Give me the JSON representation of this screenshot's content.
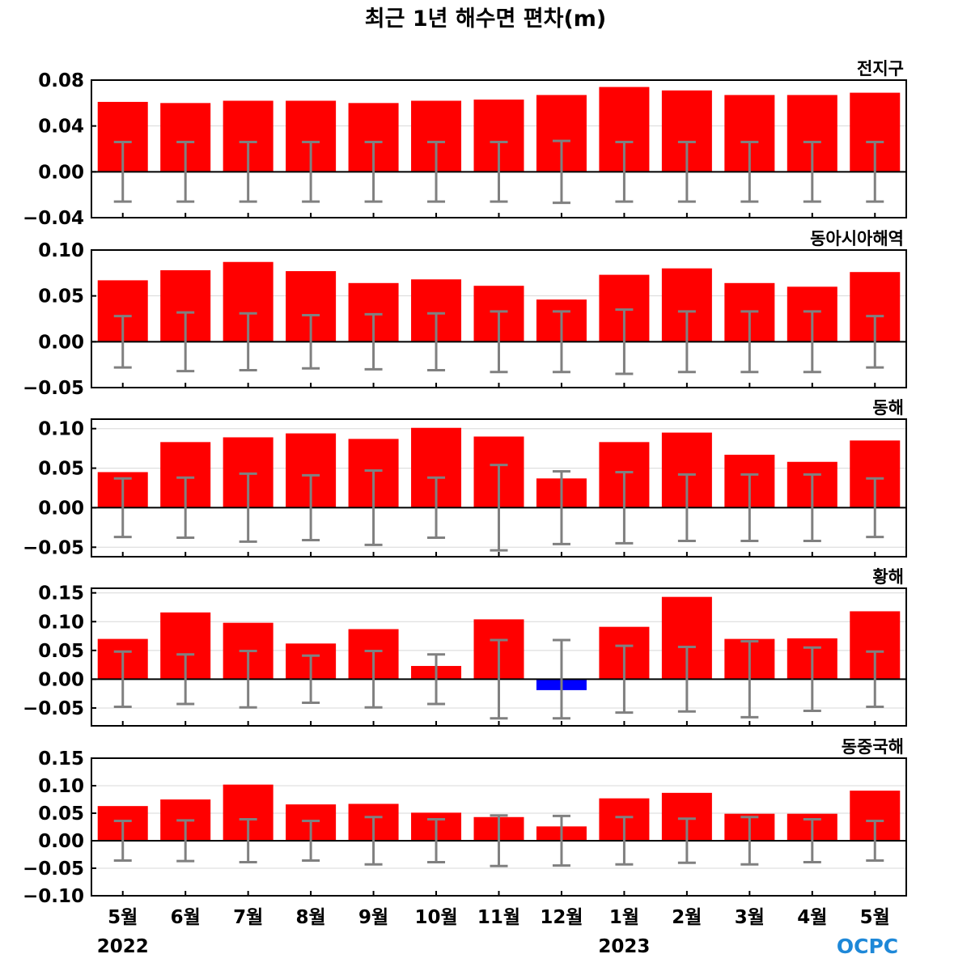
{
  "chart_data": {
    "type": "bar",
    "title": "최근 1년 해수면 편차(m)",
    "categories": [
      "5월",
      "6월",
      "7월",
      "8월",
      "9월",
      "10월",
      "11월",
      "12월",
      "1월",
      "2월",
      "3월",
      "4월",
      "5월"
    ],
    "year_labels": [
      {
        "label": "2022",
        "category_index": 0
      },
      {
        "label": "2023",
        "category_index": 8
      }
    ],
    "logo": "OCPC",
    "colors": {
      "positive": "#ff0000",
      "negative": "#0000ff",
      "error_bar": "#808080",
      "grid": "#d8d8d8"
    },
    "grid": true,
    "panels": [
      {
        "name": "전지구",
        "ylim": [
          -0.04,
          0.08
        ],
        "yticks": [
          0.08,
          0.04,
          0.0,
          -0.04
        ],
        "ytick_labels": [
          "0.08",
          "0.04",
          "0.00",
          "−0.04"
        ],
        "values": [
          0.061,
          0.06,
          0.062,
          0.062,
          0.06,
          0.062,
          0.063,
          0.067,
          0.074,
          0.071,
          0.067,
          0.067,
          0.069
        ],
        "error": [
          0.026,
          0.026,
          0.026,
          0.026,
          0.026,
          0.026,
          0.026,
          0.027,
          0.026,
          0.026,
          0.026,
          0.026,
          0.026
        ]
      },
      {
        "name": "동아시아해역",
        "ylim": [
          -0.05,
          0.1
        ],
        "yticks": [
          0.1,
          0.05,
          0.0,
          -0.05
        ],
        "ytick_labels": [
          "0.10",
          "0.05",
          "0.00",
          "−0.05"
        ],
        "values": [
          0.067,
          0.078,
          0.087,
          0.077,
          0.064,
          0.068,
          0.061,
          0.046,
          0.073,
          0.08,
          0.064,
          0.06,
          0.076
        ],
        "error": [
          0.028,
          0.032,
          0.031,
          0.029,
          0.03,
          0.031,
          0.033,
          0.033,
          0.035,
          0.033,
          0.033,
          0.033,
          0.028
        ]
      },
      {
        "name": "동해",
        "ylim": [
          -0.062,
          0.112
        ],
        "yticks": [
          0.1,
          0.05,
          0.0,
          -0.05
        ],
        "ytick_labels": [
          "0.10",
          "0.05",
          "0.00",
          "−0.05"
        ],
        "values": [
          0.045,
          0.083,
          0.089,
          0.094,
          0.087,
          0.101,
          0.09,
          0.037,
          0.083,
          0.095,
          0.067,
          0.058,
          0.085
        ],
        "error": [
          0.037,
          0.038,
          0.043,
          0.041,
          0.047,
          0.038,
          0.054,
          0.046,
          0.045,
          0.042,
          0.042,
          0.042,
          0.037
        ]
      },
      {
        "name": "황해",
        "ylim": [
          -0.081,
          0.158
        ],
        "yticks": [
          0.15,
          0.1,
          0.05,
          0.0,
          -0.05
        ],
        "ytick_labels": [
          "0.15",
          "0.10",
          "0.05",
          "0.00",
          "−0.05"
        ],
        "values": [
          0.07,
          0.116,
          0.098,
          0.062,
          0.087,
          0.023,
          0.104,
          -0.019,
          0.091,
          0.143,
          0.07,
          0.071,
          0.118
        ],
        "error": [
          0.048,
          0.043,
          0.049,
          0.041,
          0.049,
          0.043,
          0.068,
          0.068,
          0.058,
          0.056,
          0.066,
          0.055,
          0.048
        ]
      },
      {
        "name": "동중국해",
        "ylim": [
          -0.1,
          0.15
        ],
        "yticks": [
          0.15,
          0.1,
          0.05,
          0.0,
          -0.05,
          -0.1
        ],
        "ytick_labels": [
          "0.15",
          "0.10",
          "0.05",
          "0.00",
          "−0.05",
          "−0.10"
        ],
        "values": [
          0.063,
          0.075,
          0.102,
          0.066,
          0.067,
          0.051,
          0.043,
          0.026,
          0.077,
          0.087,
          0.049,
          0.049,
          0.091
        ],
        "error": [
          0.036,
          0.037,
          0.039,
          0.036,
          0.043,
          0.039,
          0.046,
          0.045,
          0.043,
          0.04,
          0.043,
          0.039,
          0.036
        ]
      }
    ]
  }
}
